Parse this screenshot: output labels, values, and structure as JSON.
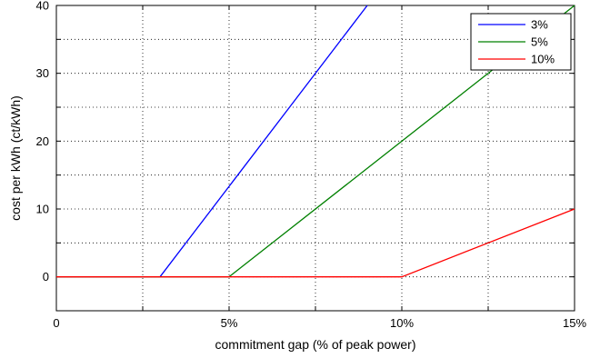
{
  "chart_data": {
    "type": "line",
    "title": "",
    "xlabel": "commitment gap (% of peak power)",
    "ylabel": "cost per kWh (ct/kWh)",
    "xlim": [
      0,
      15
    ],
    "ylim": [
      -5,
      40
    ],
    "xticks": [
      {
        "value": 0,
        "label": "0"
      },
      {
        "value": 2.5,
        "label": ""
      },
      {
        "value": 5,
        "label": "5%"
      },
      {
        "value": 7.5,
        "label": ""
      },
      {
        "value": 10,
        "label": "10%"
      },
      {
        "value": 12.5,
        "label": ""
      },
      {
        "value": 15,
        "label": "15%"
      }
    ],
    "yticks": [
      {
        "value": 0,
        "label": "0"
      },
      {
        "value": 5,
        "label": ""
      },
      {
        "value": 10,
        "label": "10"
      },
      {
        "value": 15,
        "label": ""
      },
      {
        "value": 20,
        "label": "20"
      },
      {
        "value": 25,
        "label": ""
      },
      {
        "value": 30,
        "label": "30"
      },
      {
        "value": 35,
        "label": ""
      },
      {
        "value": 40,
        "label": "40"
      }
    ],
    "grid": true,
    "legend_position": "top-right",
    "series": [
      {
        "name": "3%",
        "color": "#0000ff",
        "points": [
          [
            0,
            0
          ],
          [
            3,
            0
          ],
          [
            9,
            40
          ]
        ]
      },
      {
        "name": "5%",
        "color": "#008000",
        "points": [
          [
            0,
            0
          ],
          [
            5,
            0
          ],
          [
            15,
            40
          ]
        ]
      },
      {
        "name": "10%",
        "color": "#ff0000",
        "points": [
          [
            0,
            0
          ],
          [
            10,
            0
          ],
          [
            15,
            10
          ]
        ]
      }
    ]
  }
}
